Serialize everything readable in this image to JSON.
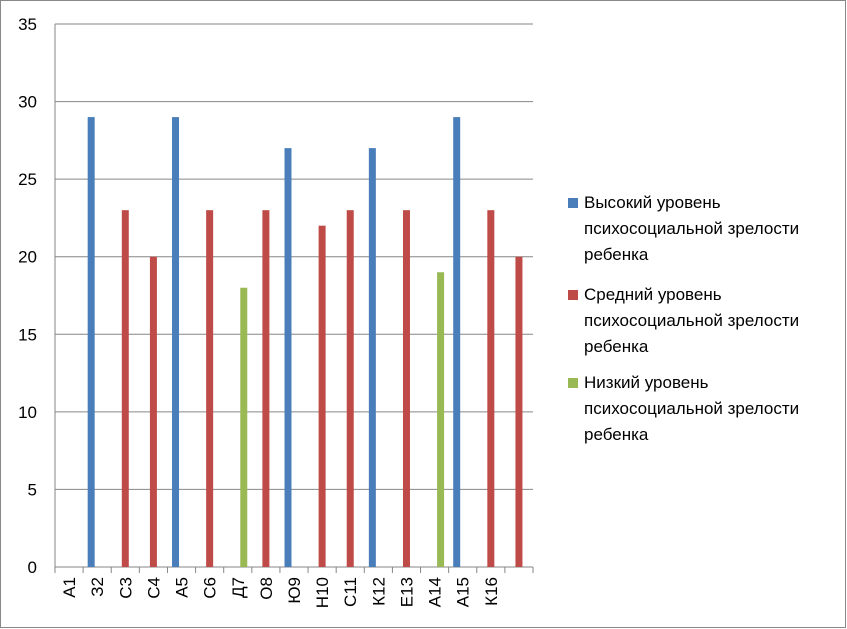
{
  "chart_data": {
    "type": "bar",
    "categories": [
      "А1",
      "З2",
      "С3",
      "С4",
      "А5",
      "С6",
      "Д7",
      "О8",
      "Ю9",
      "Н10",
      "С11",
      "К12",
      "Е13",
      "А14",
      "А15",
      "К16",
      null
    ],
    "series": [
      {
        "name": "Высокий уровень психосоциальной зрелости ребенка",
        "color": "#4a7ebb",
        "values": [
          null,
          29,
          null,
          null,
          29,
          null,
          null,
          null,
          27,
          null,
          null,
          27,
          null,
          null,
          29,
          null,
          null
        ]
      },
      {
        "name": "Средний уровень психосоциальной зрелости ребенка",
        "color": "#be4b48",
        "values": [
          null,
          null,
          23,
          20,
          null,
          23,
          null,
          23,
          null,
          22,
          23,
          null,
          23,
          null,
          null,
          23,
          20
        ]
      },
      {
        "name": "Низкий уровень психосоциальной зрелости ребенка",
        "color": "#98b954",
        "values": [
          null,
          null,
          null,
          null,
          null,
          null,
          18,
          null,
          null,
          null,
          null,
          null,
          null,
          19,
          null,
          null,
          null
        ]
      }
    ],
    "ylim": [
      0,
      35
    ],
    "yticks": [
      0,
      5,
      10,
      15,
      20,
      25,
      30,
      35
    ],
    "grid": true,
    "legend": "right"
  }
}
